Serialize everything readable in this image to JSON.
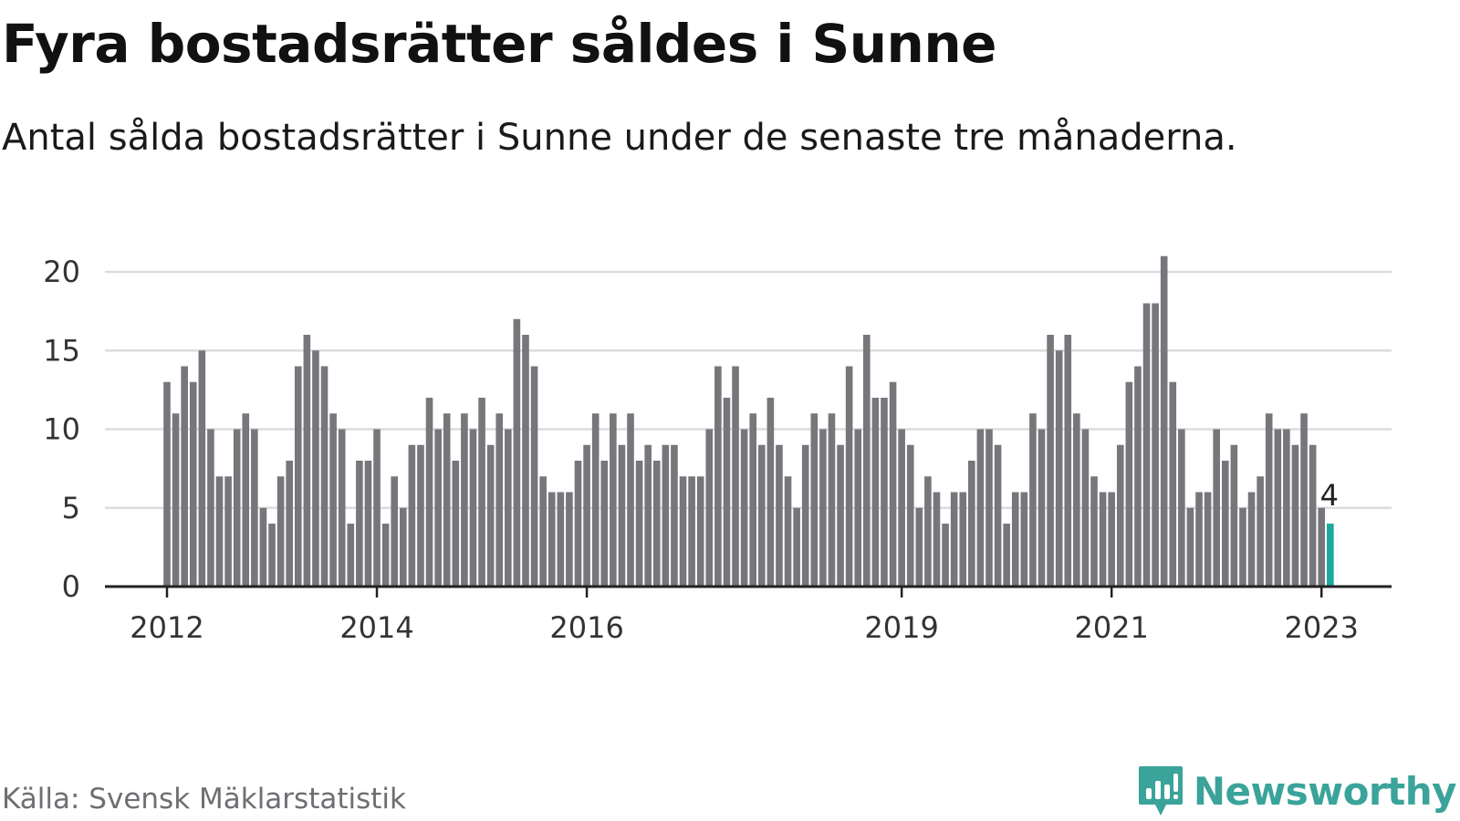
{
  "title": "Fyra bostadsrätter såldes i Sunne",
  "subtitle": "Antal sålda bostadsrätter i Sunne under de senaste tre månaderna.",
  "source": "Källa: Svensk Mäklarstatistik",
  "brand": "Newsworthy",
  "colors": {
    "bar": "#76767b",
    "highlight": "#1fa89e",
    "grid": "#dcdcdc",
    "axis": "#222222",
    "brand": "#3aa39a",
    "source": "#6e6e73"
  },
  "icons": {
    "brand_logo": "newsworthy-logo-icon"
  },
  "chart_data": {
    "type": "bar",
    "x_start": "2012-01",
    "interval": "month",
    "ylim": [
      0,
      21
    ],
    "yticks": [
      0,
      5,
      10,
      15,
      20
    ],
    "grid": true,
    "xtick_labels": [
      {
        "label": "2012",
        "date": "2012-01"
      },
      {
        "label": "2014",
        "date": "2014-01"
      },
      {
        "label": "2016",
        "date": "2016-01"
      },
      {
        "label": "2019",
        "date": "2019-01"
      },
      {
        "label": "2021",
        "date": "2021-01"
      },
      {
        "label": "2023",
        "date": "2023-01"
      }
    ],
    "values": [
      13,
      11,
      14,
      13,
      15,
      10,
      7,
      7,
      10,
      11,
      10,
      5,
      4,
      7,
      8,
      14,
      16,
      15,
      14,
      11,
      10,
      4,
      8,
      8,
      10,
      4,
      7,
      5,
      9,
      9,
      12,
      10,
      11,
      8,
      11,
      10,
      12,
      9,
      11,
      10,
      17,
      16,
      14,
      7,
      6,
      6,
      6,
      8,
      9,
      11,
      8,
      11,
      9,
      11,
      8,
      9,
      8,
      9,
      9,
      7,
      7,
      7,
      10,
      14,
      12,
      14,
      10,
      11,
      9,
      12,
      9,
      7,
      5,
      9,
      11,
      10,
      11,
      9,
      14,
      10,
      16,
      12,
      12,
      13,
      10,
      9,
      5,
      7,
      6,
      4,
      6,
      6,
      8,
      10,
      10,
      9,
      4,
      6,
      6,
      11,
      10,
      16,
      15,
      16,
      11,
      10,
      7,
      6,
      6,
      9,
      13,
      14,
      18,
      18,
      21,
      13,
      10,
      5,
      6,
      6,
      10,
      8,
      9,
      5,
      6,
      7,
      11,
      10,
      10,
      9,
      11,
      9,
      5,
      4
    ],
    "highlight_index": 133,
    "data_label": "4"
  }
}
